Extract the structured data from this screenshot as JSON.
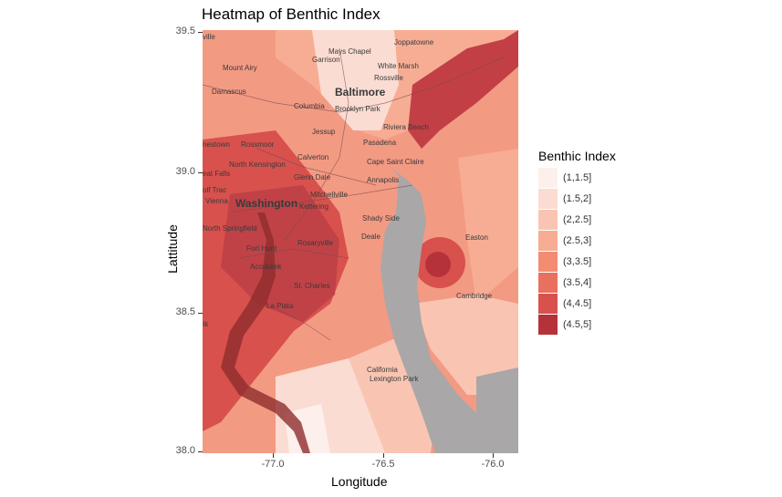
{
  "chart_data": {
    "type": "heatmap",
    "title": "Heatmap of Benthic Index",
    "xlabel": "Longitude",
    "ylabel": "Lattitude",
    "xlim": [
      -77.32,
      -75.88
    ],
    "ylim": [
      38.0,
      39.5
    ],
    "x_ticks": [
      "-77.0",
      "-76.5",
      "-76.0"
    ],
    "y_ticks": [
      "38.0",
      "38.5",
      "39.0",
      "39.5"
    ],
    "legend": {
      "title": "Benthic Index",
      "position": "right",
      "entries": [
        {
          "label": "(1,1.5]",
          "color": "#fdf0ec"
        },
        {
          "label": "(1.5,2]",
          "color": "#fbdcd2"
        },
        {
          "label": "(2,2.5]",
          "color": "#f9c5b2"
        },
        {
          "label": "(2.5,3]",
          "color": "#f7ad94"
        },
        {
          "label": "(3,3.5]",
          "color": "#f38c73"
        },
        {
          "label": "(3.5,4]",
          "color": "#e9705e"
        },
        {
          "label": "(4,4.5]",
          "color": "#d8514d"
        },
        {
          "label": "(4.5,5]",
          "color": "#b5323a"
        }
      ]
    },
    "grid": false,
    "background": "basemap",
    "basemap_places": [
      "Joppatowne",
      "Mays Chapel",
      "Garrison",
      "Mount Airy",
      "White Marsh",
      "Rossville",
      "Damascus",
      "Baltimore",
      "Columbia",
      "Brooklyn Park",
      "Riviera Beach",
      "Jessup",
      "Pasadena",
      "nestown",
      "Rossmoor",
      "Calverton",
      "North Kensington",
      "Cape Saint Claire",
      "eat Falls",
      "Glenn Dale",
      "Annapolis",
      "olf Trac",
      "Mitchellville",
      "Vienna",
      "Washington",
      "Kettering",
      "Shady Side",
      "North Springfield",
      "Deale",
      "Easton",
      "Fort Hunt",
      "Rosaryville",
      "Accokeek",
      "St. Charles",
      "Cambridge",
      "La Plata",
      "California",
      "Lexington Park",
      "ville",
      "Ik"
    ]
  }
}
